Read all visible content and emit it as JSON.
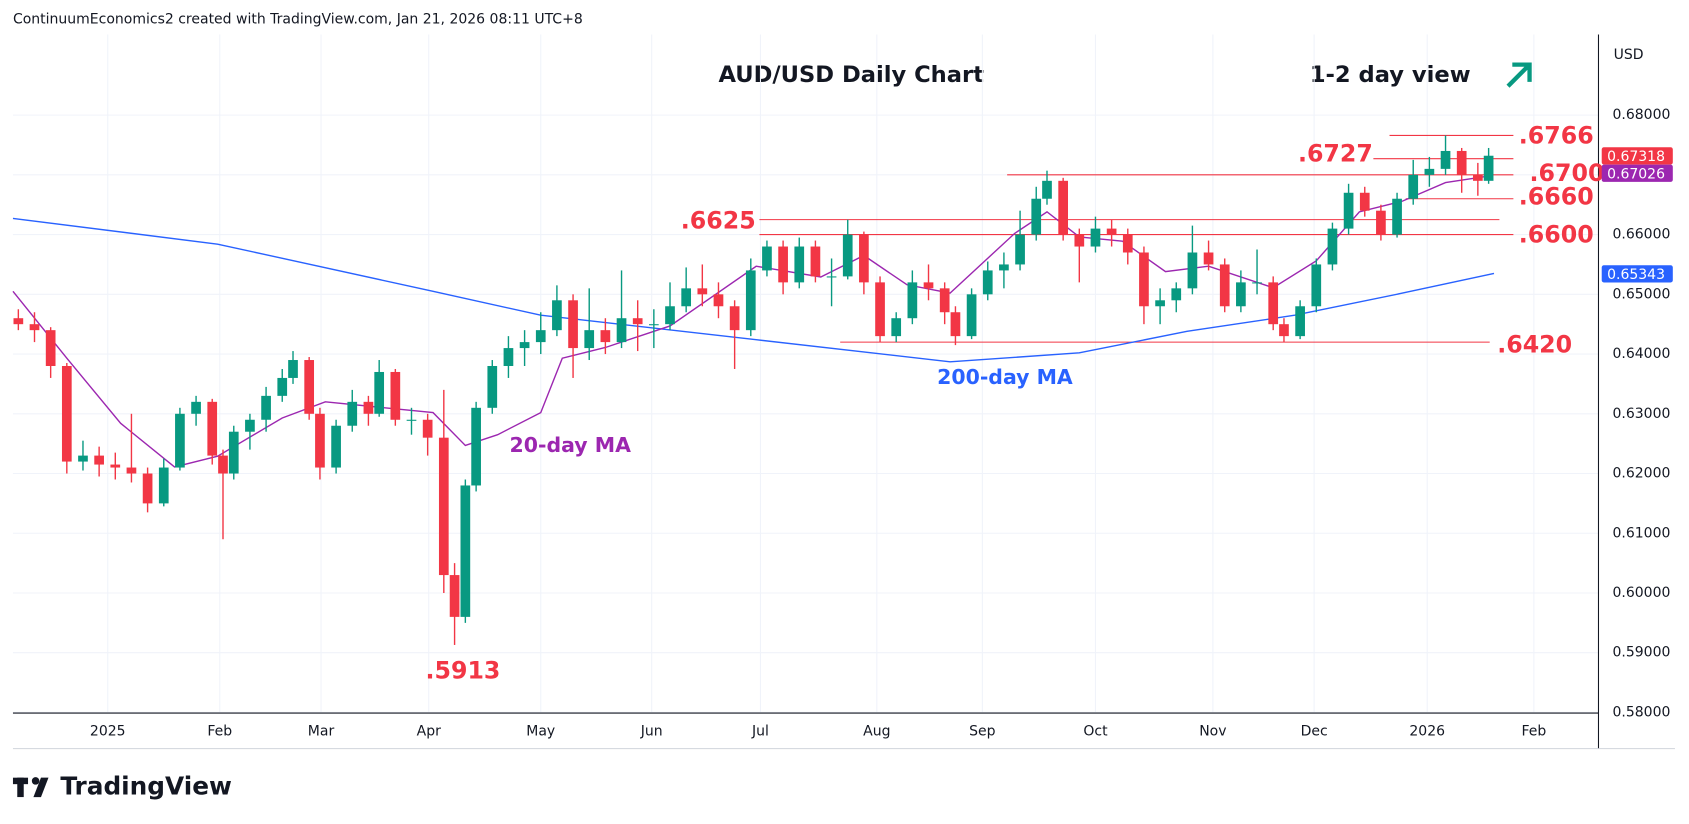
{
  "header": "ContinuumEconomics2 created with TradingView.com, Jan 21, 2026 08:11 UTC+8",
  "brand": "TradingView",
  "chart_data": {
    "type": "candlestick",
    "title": "AUD/USD Daily Chart",
    "subtitle": "1-2 day view",
    "currency": "USD",
    "x": [
      1,
      4,
      7,
      10,
      13,
      16,
      19,
      22,
      25,
      28,
      31,
      34,
      37,
      39,
      41,
      44,
      47,
      50,
      52,
      55,
      57,
      60,
      63,
      66,
      68,
      71,
      74,
      77,
      80,
      82,
      84,
      86,
      89,
      92,
      95,
      98,
      101,
      104,
      107,
      110,
      113,
      116,
      119,
      122,
      125,
      128,
      131,
      134,
      137,
      140,
      143,
      146,
      149,
      152,
      155,
      158,
      161,
      164,
      167,
      170,
      173,
      175,
      178,
      181,
      184,
      187,
      190,
      192,
      195,
      198,
      201,
      204,
      207,
      210,
      213,
      216,
      219,
      222,
      225,
      228,
      231,
      234,
      236,
      239,
      242,
      245,
      248,
      251,
      254,
      257,
      260,
      263,
      266,
      269,
      272,
      274
    ],
    "open": [
      0.646,
      0.645,
      0.644,
      0.638,
      0.622,
      0.623,
      0.6215,
      0.621,
      0.62,
      0.615,
      0.621,
      0.63,
      0.632,
      0.623,
      0.62,
      0.627,
      0.629,
      0.633,
      0.636,
      0.639,
      0.63,
      0.621,
      0.628,
      0.632,
      0.63,
      0.637,
      0.629,
      0.629,
      0.626,
      0.603,
      0.596,
      0.618,
      0.631,
      0.638,
      0.641,
      0.642,
      0.644,
      0.649,
      0.641,
      0.644,
      0.642,
      0.646,
      0.645,
      0.645,
      0.648,
      0.651,
      0.65,
      0.648,
      0.644,
      0.654,
      0.658,
      0.652,
      0.658,
      0.653,
      0.653,
      0.66,
      0.652,
      0.643,
      0.646,
      0.652,
      0.651,
      0.647,
      0.643,
      0.65,
      0.654,
      0.655,
      0.66,
      0.666,
      0.669,
      0.66,
      0.658,
      0.661,
      0.66,
      0.657,
      0.648,
      0.649,
      0.651,
      0.657,
      0.655,
      0.648,
      0.652,
      0.652,
      0.645,
      0.643,
      0.648,
      0.655,
      0.661,
      0.667,
      0.664,
      0.66,
      0.666,
      0.67,
      0.671,
      0.674,
      0.67,
      0.669
    ],
    "high": [
      0.6475,
      0.647,
      0.6445,
      0.6385,
      0.6255,
      0.6245,
      0.6235,
      0.63,
      0.621,
      0.6225,
      0.631,
      0.633,
      0.6325,
      0.624,
      0.628,
      0.63,
      0.6345,
      0.6375,
      0.6405,
      0.6395,
      0.631,
      0.629,
      0.634,
      0.633,
      0.639,
      0.6375,
      0.631,
      0.63,
      0.634,
      0.605,
      0.619,
      0.632,
      0.639,
      0.643,
      0.644,
      0.647,
      0.6515,
      0.65,
      0.651,
      0.646,
      0.654,
      0.649,
      0.6475,
      0.652,
      0.6545,
      0.655,
      0.652,
      0.649,
      0.656,
      0.659,
      0.659,
      0.6595,
      0.659,
      0.656,
      0.6625,
      0.6605,
      0.653,
      0.647,
      0.654,
      0.655,
      0.652,
      0.648,
      0.651,
      0.6555,
      0.657,
      0.664,
      0.668,
      0.6707,
      0.6695,
      0.661,
      0.663,
      0.6625,
      0.661,
      0.658,
      0.651,
      0.652,
      0.6615,
      0.659,
      0.656,
      0.654,
      0.6575,
      0.653,
      0.646,
      0.649,
      0.656,
      0.662,
      0.6685,
      0.668,
      0.665,
      0.667,
      0.6725,
      0.673,
      0.6766,
      0.6745,
      0.672,
      0.6745
    ],
    "low": [
      0.644,
      0.642,
      0.636,
      0.62,
      0.6205,
      0.6195,
      0.619,
      0.6185,
      0.6135,
      0.6145,
      0.6205,
      0.628,
      0.6215,
      0.609,
      0.619,
      0.624,
      0.627,
      0.632,
      0.635,
      0.629,
      0.619,
      0.62,
      0.627,
      0.628,
      0.6295,
      0.628,
      0.6265,
      0.623,
      0.6,
      0.5913,
      0.595,
      0.617,
      0.63,
      0.636,
      0.638,
      0.64,
      0.643,
      0.636,
      0.639,
      0.64,
      0.641,
      0.6405,
      0.641,
      0.644,
      0.647,
      0.648,
      0.646,
      0.6375,
      0.643,
      0.653,
      0.65,
      0.651,
      0.652,
      0.648,
      0.6525,
      0.65,
      0.642,
      0.642,
      0.645,
      0.649,
      0.645,
      0.6415,
      0.6425,
      0.649,
      0.651,
      0.654,
      0.659,
      0.665,
      0.659,
      0.652,
      0.657,
      0.658,
      0.655,
      0.645,
      0.645,
      0.647,
      0.65,
      0.654,
      0.647,
      0.647,
      0.65,
      0.644,
      0.642,
      0.6425,
      0.647,
      0.654,
      0.66,
      0.663,
      0.659,
      0.6595,
      0.665,
      0.668,
      0.67,
      0.667,
      0.6665,
      0.6685
    ],
    "close": [
      0.645,
      0.644,
      0.638,
      0.622,
      0.623,
      0.6215,
      0.621,
      0.62,
      0.615,
      0.621,
      0.63,
      0.632,
      0.623,
      0.62,
      0.627,
      0.629,
      0.633,
      0.636,
      0.639,
      0.63,
      0.621,
      0.628,
      0.632,
      0.63,
      0.637,
      0.629,
      0.629,
      0.626,
      0.603,
      0.596,
      0.618,
      0.631,
      0.638,
      0.641,
      0.642,
      0.644,
      0.649,
      0.641,
      0.644,
      0.642,
      0.646,
      0.645,
      0.645,
      0.648,
      0.651,
      0.65,
      0.648,
      0.644,
      0.654,
      0.658,
      0.652,
      0.658,
      0.653,
      0.653,
      0.66,
      0.652,
      0.643,
      0.646,
      0.652,
      0.651,
      0.647,
      0.643,
      0.65,
      0.654,
      0.655,
      0.66,
      0.666,
      0.669,
      0.66,
      0.658,
      0.661,
      0.66,
      0.657,
      0.648,
      0.649,
      0.651,
      0.657,
      0.655,
      0.648,
      0.652,
      0.652,
      0.645,
      0.643,
      0.648,
      0.655,
      0.661,
      0.667,
      0.664,
      0.66,
      0.666,
      0.67,
      0.671,
      0.674,
      0.67,
      0.669,
      0.6732
    ],
    "up_color": "#089981",
    "down_color": "#f23645",
    "series": [
      {
        "name": "200-day MA",
        "color": "#2962ff",
        "x": [
          0,
          38,
          78,
          98,
          138,
          174,
          198,
          218,
          238,
          258,
          275
        ],
        "values": [
          0.6627,
          0.6584,
          0.6505,
          0.6465,
          0.6424,
          0.6387,
          0.6402,
          0.6438,
          0.6465,
          0.6502,
          0.6535
        ]
      },
      {
        "name": "20-day MA",
        "color": "#9c27b0",
        "x": [
          0,
          10,
          20,
          30,
          38,
          50,
          58,
          78,
          84,
          90,
          98,
          102,
          110,
          122,
          138,
          150,
          158,
          166,
          174,
          186,
          192,
          198,
          206,
          214,
          222,
          234,
          242,
          250,
          258,
          266,
          274
        ],
        "values": [
          0.6505,
          0.6393,
          0.6284,
          0.6211,
          0.6229,
          0.6293,
          0.632,
          0.6302,
          0.6247,
          0.6265,
          0.6302,
          0.6393,
          0.6411,
          0.6447,
          0.6547,
          0.6529,
          0.6565,
          0.6516,
          0.6502,
          0.6602,
          0.6638,
          0.6596,
          0.6589,
          0.6538,
          0.6547,
          0.6511,
          0.6556,
          0.6638,
          0.6656,
          0.6687,
          0.6698
        ]
      }
    ],
    "levels": [
      {
        "value": 0.6766,
        "label": ".6766",
        "from": 255.6,
        "to": 278.6
      },
      {
        "value": 0.6727,
        "label": ".6727",
        "from": 252.6,
        "to": 278.6
      },
      {
        "value": 0.67,
        "label": ".6700",
        "from": 184.6,
        "to": 278.6
      },
      {
        "value": 0.666,
        "label": ".6660",
        "from": 258.6,
        "to": 278.6
      },
      {
        "value": 0.6625,
        "label": ".6625",
        "from": 138.6,
        "to": 276
      },
      {
        "value": 0.66,
        "label": ".6600",
        "from": 138.6,
        "to": 278.6
      },
      {
        "value": 0.642,
        "label": ".6420",
        "from": 153.6,
        "to": 274.2
      }
    ],
    "low_label": {
      "value": 0.5913,
      "label": ".5913"
    },
    "price_labels": [
      {
        "value": 0.67318,
        "label": "0.67318",
        "color": "#f23645"
      },
      {
        "value": 0.67026,
        "label": "0.67026",
        "color": "#9c27b0"
      },
      {
        "value": 0.65343,
        "label": "0.65343",
        "color": "#2962ff"
      }
    ],
    "xlim": [
      0,
      294.4
    ],
    "ylim": [
      0.5799,
      0.6935
    ],
    "xticks": [
      {
        "value": 17.6,
        "label": "2025"
      },
      {
        "value": 38.4,
        "label": "Feb"
      },
      {
        "value": 57.2,
        "label": "Mar"
      },
      {
        "value": 77.2,
        "label": "Apr"
      },
      {
        "value": 98,
        "label": "May"
      },
      {
        "value": 118.6,
        "label": "Jun"
      },
      {
        "value": 138.8,
        "label": "Jul"
      },
      {
        "value": 160.4,
        "label": "Aug"
      },
      {
        "value": 180,
        "label": "Sep"
      },
      {
        "value": 201,
        "label": "Oct"
      },
      {
        "value": 222.8,
        "label": "Nov"
      },
      {
        "value": 241.6,
        "label": "Dec"
      },
      {
        "value": 262.6,
        "label": "2026"
      },
      {
        "value": 282.4,
        "label": "Feb"
      }
    ],
    "yticks": [
      {
        "value": 0.58,
        "label": "0.58000"
      },
      {
        "value": 0.59,
        "label": "0.59000"
      },
      {
        "value": 0.6,
        "label": "0.60000"
      },
      {
        "value": 0.61,
        "label": "0.61000"
      },
      {
        "value": 0.62,
        "label": "0.62000"
      },
      {
        "value": 0.63,
        "label": "0.63000"
      },
      {
        "value": 0.64,
        "label": "0.64000"
      },
      {
        "value": 0.65,
        "label": "0.65000"
      },
      {
        "value": 0.66,
        "label": "0.66000"
      },
      {
        "value": 0.67,
        "label": "0.67000"
      },
      {
        "value": 0.68,
        "label": "0.68000"
      }
    ],
    "grid": true
  }
}
